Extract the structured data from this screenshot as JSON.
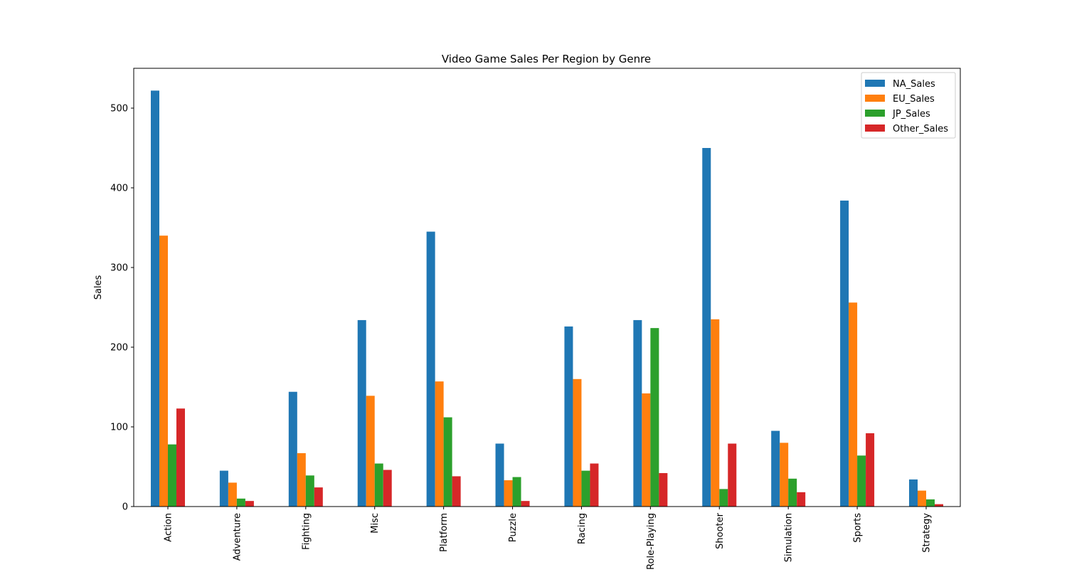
{
  "chart_data": {
    "type": "bar",
    "title": "Video Game Sales Per Region by Genre",
    "xlabel": "",
    "ylabel": "Sales",
    "ylim": [
      0,
      550
    ],
    "yticks": [
      0,
      100,
      200,
      300,
      400,
      500
    ],
    "grid": false,
    "legend_position": "top-right",
    "categories": [
      "Action",
      "Adventure",
      "Fighting",
      "Misc",
      "Platform",
      "Puzzle",
      "Racing",
      "Role-Playing",
      "Shooter",
      "Simulation",
      "Sports",
      "Strategy"
    ],
    "series": [
      {
        "name": "NA_Sales",
        "color": "#1f77b4",
        "values": [
          522,
          45,
          144,
          234,
          345,
          79,
          226,
          234,
          450,
          95,
          384,
          34
        ]
      },
      {
        "name": "EU_Sales",
        "color": "#ff7f0e",
        "values": [
          340,
          30,
          67,
          139,
          157,
          33,
          160,
          142,
          235,
          80,
          256,
          20
        ]
      },
      {
        "name": "JP_Sales",
        "color": "#2ca02c",
        "values": [
          78,
          10,
          39,
          54,
          112,
          37,
          45,
          224,
          22,
          35,
          64,
          9
        ]
      },
      {
        "name": "Other_Sales",
        "color": "#d62728",
        "values": [
          123,
          7,
          24,
          46,
          38,
          7,
          54,
          42,
          79,
          18,
          92,
          3
        ]
      }
    ]
  }
}
